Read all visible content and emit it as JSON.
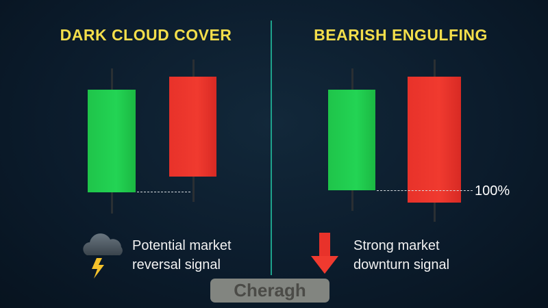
{
  "left_panel": {
    "title": "DARK CLOUD COVER",
    "caption_line1": "Potential market",
    "caption_line2": "reversal signal",
    "icon": "storm-cloud-icon"
  },
  "right_panel": {
    "title": "BEARISH ENGULFING",
    "caption_line1": "Strong market",
    "caption_line2": "downturn signal",
    "icon": "red-down-arrow-icon",
    "level_label": "100%"
  },
  "watermark": "Cheragh",
  "colors": {
    "title": "#f3de4b",
    "bullish": "#23d454",
    "bearish": "#f03a2f",
    "divider": "#1ea28c"
  }
}
